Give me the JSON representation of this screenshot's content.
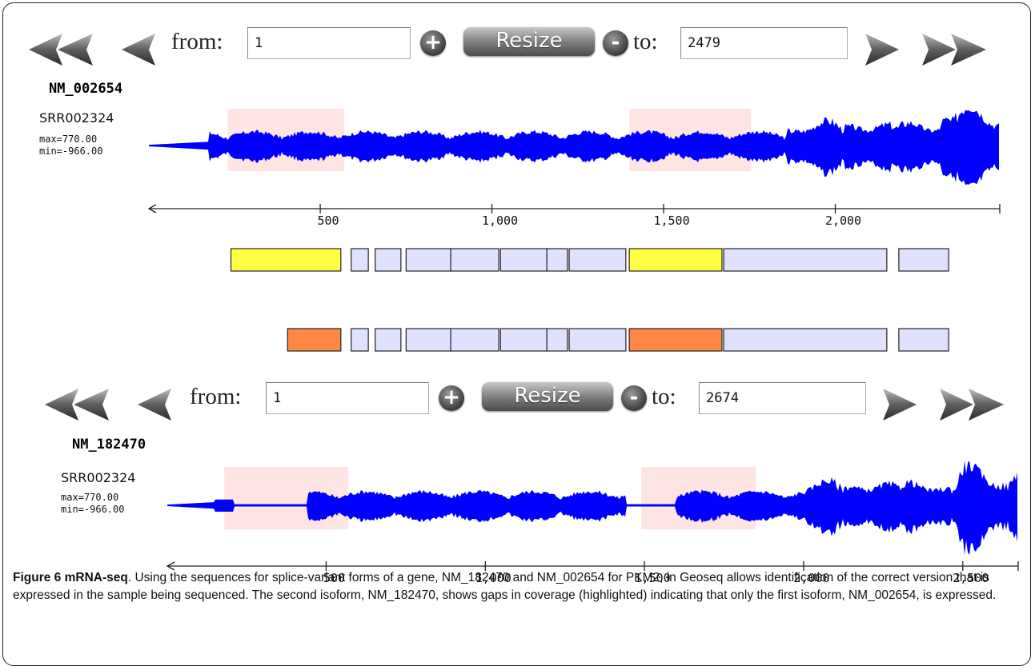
{
  "panels": [
    {
      "from_label": "from:",
      "from_value": "1",
      "plus_label": "+",
      "resize_label": "Resize",
      "minus_label": "-",
      "to_label": "to:",
      "to_value": "2479",
      "gene": "NM_002654",
      "track": {
        "name": "SRR002324",
        "max": "max=770.00",
        "min": "min=-966.00"
      },
      "axis": {
        "range": [
          1,
          2479
        ],
        "ticks": [
          {
            "value": 500,
            "label": "500"
          },
          {
            "value": 1000,
            "label": "1,000"
          },
          {
            "value": 1500,
            "label": "1,500"
          },
          {
            "value": 2000,
            "label": "2,000"
          }
        ]
      },
      "highlights": [
        [
          230,
          570
        ],
        [
          1400,
          1755
        ]
      ],
      "exon_rows": [
        [
          {
            "start": 240,
            "end": 560,
            "color": "#ffff44"
          },
          {
            "start": 590,
            "end": 640,
            "color": "#e0e0ff"
          },
          {
            "start": 660,
            "end": 735,
            "color": "#e0e0ff"
          },
          {
            "start": 750,
            "end": 880,
            "color": "#e0e0ff"
          },
          {
            "start": 880,
            "end": 1020,
            "color": "#e0e0ff"
          },
          {
            "start": 1025,
            "end": 1160,
            "color": "#e0e0ff"
          },
          {
            "start": 1160,
            "end": 1220,
            "color": "#e0e0ff"
          },
          {
            "start": 1225,
            "end": 1390,
            "color": "#e0e0ff"
          },
          {
            "start": 1400,
            "end": 1670,
            "color": "#ffff44"
          },
          {
            "start": 1675,
            "end": 2150,
            "color": "#e0e0ff"
          },
          {
            "start": 2185,
            "end": 2330,
            "color": "#e0e0ff"
          }
        ],
        [
          {
            "start": 405,
            "end": 560,
            "color": "#ff8844"
          },
          {
            "start": 590,
            "end": 640,
            "color": "#e0e0ff"
          },
          {
            "start": 660,
            "end": 735,
            "color": "#e0e0ff"
          },
          {
            "start": 750,
            "end": 880,
            "color": "#e0e0ff"
          },
          {
            "start": 880,
            "end": 1020,
            "color": "#e0e0ff"
          },
          {
            "start": 1025,
            "end": 1160,
            "color": "#e0e0ff"
          },
          {
            "start": 1160,
            "end": 1220,
            "color": "#e0e0ff"
          },
          {
            "start": 1225,
            "end": 1390,
            "color": "#e0e0ff"
          },
          {
            "start": 1400,
            "end": 1670,
            "color": "#ff8844"
          },
          {
            "start": 1675,
            "end": 2150,
            "color": "#e0e0ff"
          },
          {
            "start": 2185,
            "end": 2330,
            "color": "#e0e0ff"
          }
        ]
      ]
    },
    {
      "from_label": "from:",
      "from_value": "1",
      "plus_label": "+",
      "resize_label": "Resize",
      "minus_label": "-",
      "to_label": "to:",
      "to_value": "2674",
      "gene": "NM_182470",
      "track": {
        "name": "SRR002324",
        "max": "max=770.00",
        "min": "min=-966.00"
      },
      "axis": {
        "range": [
          1,
          2674
        ],
        "ticks": [
          {
            "value": 500,
            "label": "500"
          },
          {
            "value": 1000,
            "label": "1,000"
          },
          {
            "value": 1500,
            "label": "1,500"
          },
          {
            "value": 2000,
            "label": "2,000"
          },
          {
            "value": 2500,
            "label": "2,500"
          }
        ]
      },
      "highlights": [
        [
          180,
          570
        ],
        [
          1490,
          1850
        ]
      ],
      "exon_rows": []
    }
  ],
  "colors": {
    "coverage": "#0000ff",
    "highlight": "#ffe4e4",
    "exon_border": "#222222"
  },
  "caption": {
    "figure_label": "Figure 6 mRNA-seq",
    "text": ". Using the sequences for splice-variant forms of a gene, NM_182470 and NM_002654 for PKM2, in Geoseq allows identification of the correct version that is expressed in the sample being sequenced. The second isoform, NM_182470, shows gaps in coverage (highlighted) indicating that only the first isoform, NM_002654, is expressed."
  }
}
